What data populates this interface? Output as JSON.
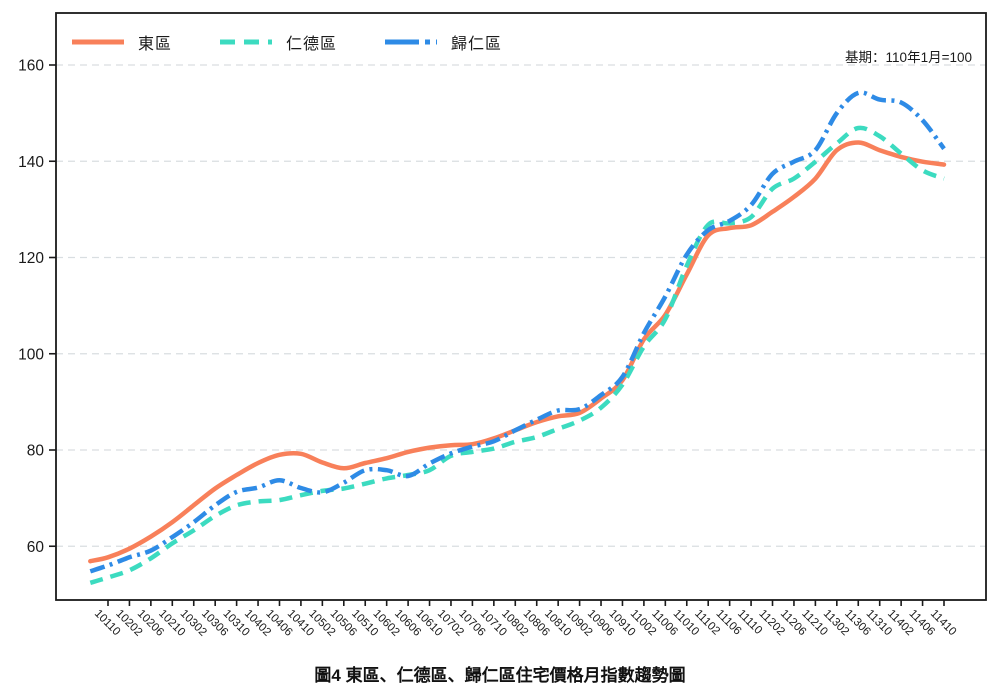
{
  "chart_data": {
    "type": "line",
    "title": "圖4 東區、仁德區、歸仁區住宅價格月指數趨勢圖",
    "annotation": "基期：110年1月=100",
    "xlabel": "",
    "ylabel": "",
    "ylim": [
      49,
      171
    ],
    "yticks": [
      60,
      80,
      100,
      120,
      140,
      160
    ],
    "grid": "horizontal-dashed",
    "legend_position": "top-left-inside",
    "categories": [
      "10110",
      "10202",
      "10206",
      "10210",
      "10302",
      "10306",
      "10310",
      "10402",
      "10406",
      "10410",
      "10502",
      "10506",
      "10510",
      "10602",
      "10606",
      "10610",
      "10702",
      "10706",
      "10710",
      "10802",
      "10806",
      "10810",
      "10902",
      "10906",
      "10910",
      "11002",
      "11006",
      "11010",
      "11102",
      "11106",
      "11110",
      "11202",
      "11206",
      "11210",
      "11302",
      "11306",
      "11310",
      "11402",
      "11406",
      "11410"
    ],
    "lead_months_before_first_tick": 3,
    "series": [
      {
        "name": "東區",
        "color": "#F8805A",
        "style": "solid",
        "lead_value": 56.9,
        "values": [
          57.7,
          59.5,
          62.0,
          65.0,
          68.5,
          72.0,
          74.8,
          77.3,
          79.0,
          79.2,
          77.4,
          76.2,
          77.3,
          78.3,
          79.6,
          80.5,
          81.0,
          81.2,
          82.4,
          84.1,
          85.8,
          87.0,
          87.7,
          90.7,
          94.5,
          103.0,
          108.1,
          116.5,
          124.6,
          126.1,
          126.7,
          129.5,
          132.6,
          136.4,
          142.3,
          143.9,
          142.3,
          140.9,
          139.9,
          139.3
        ]
      },
      {
        "name": "仁德區",
        "color": "#3CDBC0",
        "style": "dashed",
        "lead_value": 52.4,
        "values": [
          53.5,
          55.0,
          57.5,
          60.6,
          63.3,
          66.3,
          68.5,
          69.3,
          69.6,
          70.6,
          71.5,
          72.0,
          73.0,
          74.1,
          74.8,
          75.8,
          78.8,
          79.6,
          80.3,
          81.7,
          82.7,
          84.4,
          86.1,
          88.8,
          93.6,
          101.5,
          107.2,
          118.3,
          126.8,
          127.1,
          128.4,
          134.3,
          136.4,
          139.9,
          143.7,
          146.9,
          145.2,
          141.6,
          138.1,
          136.4
        ]
      },
      {
        "name": "歸仁區",
        "color": "#2E8BE6",
        "style": "dashdot",
        "lead_value": 54.8,
        "values": [
          56.0,
          57.7,
          59.1,
          61.9,
          65.0,
          68.5,
          71.3,
          72.2,
          73.7,
          72.1,
          71.2,
          73.2,
          75.8,
          75.8,
          74.6,
          77.2,
          79.3,
          80.7,
          81.8,
          84.1,
          86.3,
          88.2,
          88.5,
          91.4,
          95.2,
          104.3,
          111.9,
          120.6,
          125.7,
          127.6,
          130.9,
          137.4,
          139.9,
          142.3,
          150.0,
          154.2,
          152.8,
          152.2,
          148.5,
          142.6
        ]
      }
    ],
    "axis_color": "#1a1a1a",
    "grid_color": "#d9dee1"
  }
}
